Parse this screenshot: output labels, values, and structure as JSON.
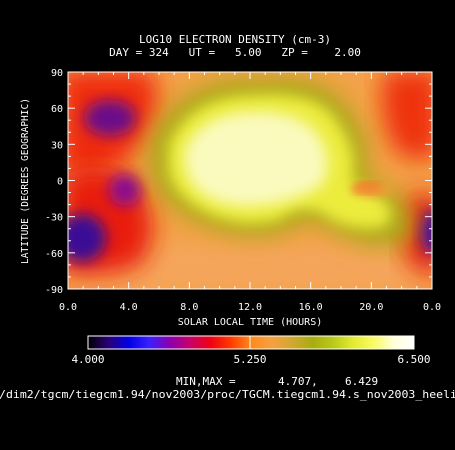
{
  "chart_data": {
    "type": "heatmap",
    "title": "LOG10 ELECTRON DENSITY (cm-3)",
    "subtitle": "DAY = 324   UT =   5.00   ZP =    2.00",
    "xlabel": "SOLAR LOCAL TIME (HOURS)",
    "ylabel": "LATITUDE (DEGREES GEOGRAPHIC)",
    "xlim": [
      0.0,
      24.0
    ],
    "ylim": [
      -90,
      90
    ],
    "x_ticks": [
      "0.0",
      "4.0",
      "8.0",
      "12.0",
      "16.0",
      "20.0",
      "0.0"
    ],
    "y_ticks": [
      "90",
      "60",
      "30",
      "0",
      "-30",
      "-60",
      "-90"
    ],
    "colorbar": {
      "min": 4.0,
      "max": 6.5,
      "labels": [
        "4.000",
        "5.250",
        "6.500"
      ],
      "colors": [
        "#000000",
        "#2a0078",
        "#0000e6",
        "#3a20ff",
        "#8a00b0",
        "#c8006a",
        "#f00014",
        "#ff3a00",
        "#ff8a1c",
        "#f6a040",
        "#d2a830",
        "#a8ac10",
        "#b8c818",
        "#e2ec30",
        "#fafa60",
        "#ffffd8",
        "#ffffff"
      ]
    },
    "minmax_label": "MIN,MAX =",
    "min_value": "4.707,",
    "max_value": "6.429",
    "file_path": "/dim2/tgcm/tiegcm1.94/nov2003/proc/TGCM.tiegcm1.94.s_nov2003_heeli",
    "regions": [
      {
        "kind": "background",
        "x": [
          0,
          24
        ],
        "y": [
          -90,
          90
        ],
        "value": 5.4
      },
      {
        "kind": "low",
        "x": [
          0,
          6.5
        ],
        "y": [
          35,
          85
        ],
        "value": 5.0
      },
      {
        "kind": "low",
        "x": [
          0,
          4.5
        ],
        "y": [
          -65,
          -10
        ],
        "value": 4.75
      },
      {
        "kind": "low",
        "x": [
          21.5,
          24
        ],
        "y": [
          -70,
          -10
        ],
        "value": 4.8
      },
      {
        "kind": "high",
        "x": [
          6.5,
          20
        ],
        "y": [
          -40,
          85
        ],
        "value": 6.4
      },
      {
        "kind": "high",
        "x": [
          17,
          21
        ],
        "y": [
          -15,
          0
        ],
        "value": 5.3
      }
    ]
  }
}
